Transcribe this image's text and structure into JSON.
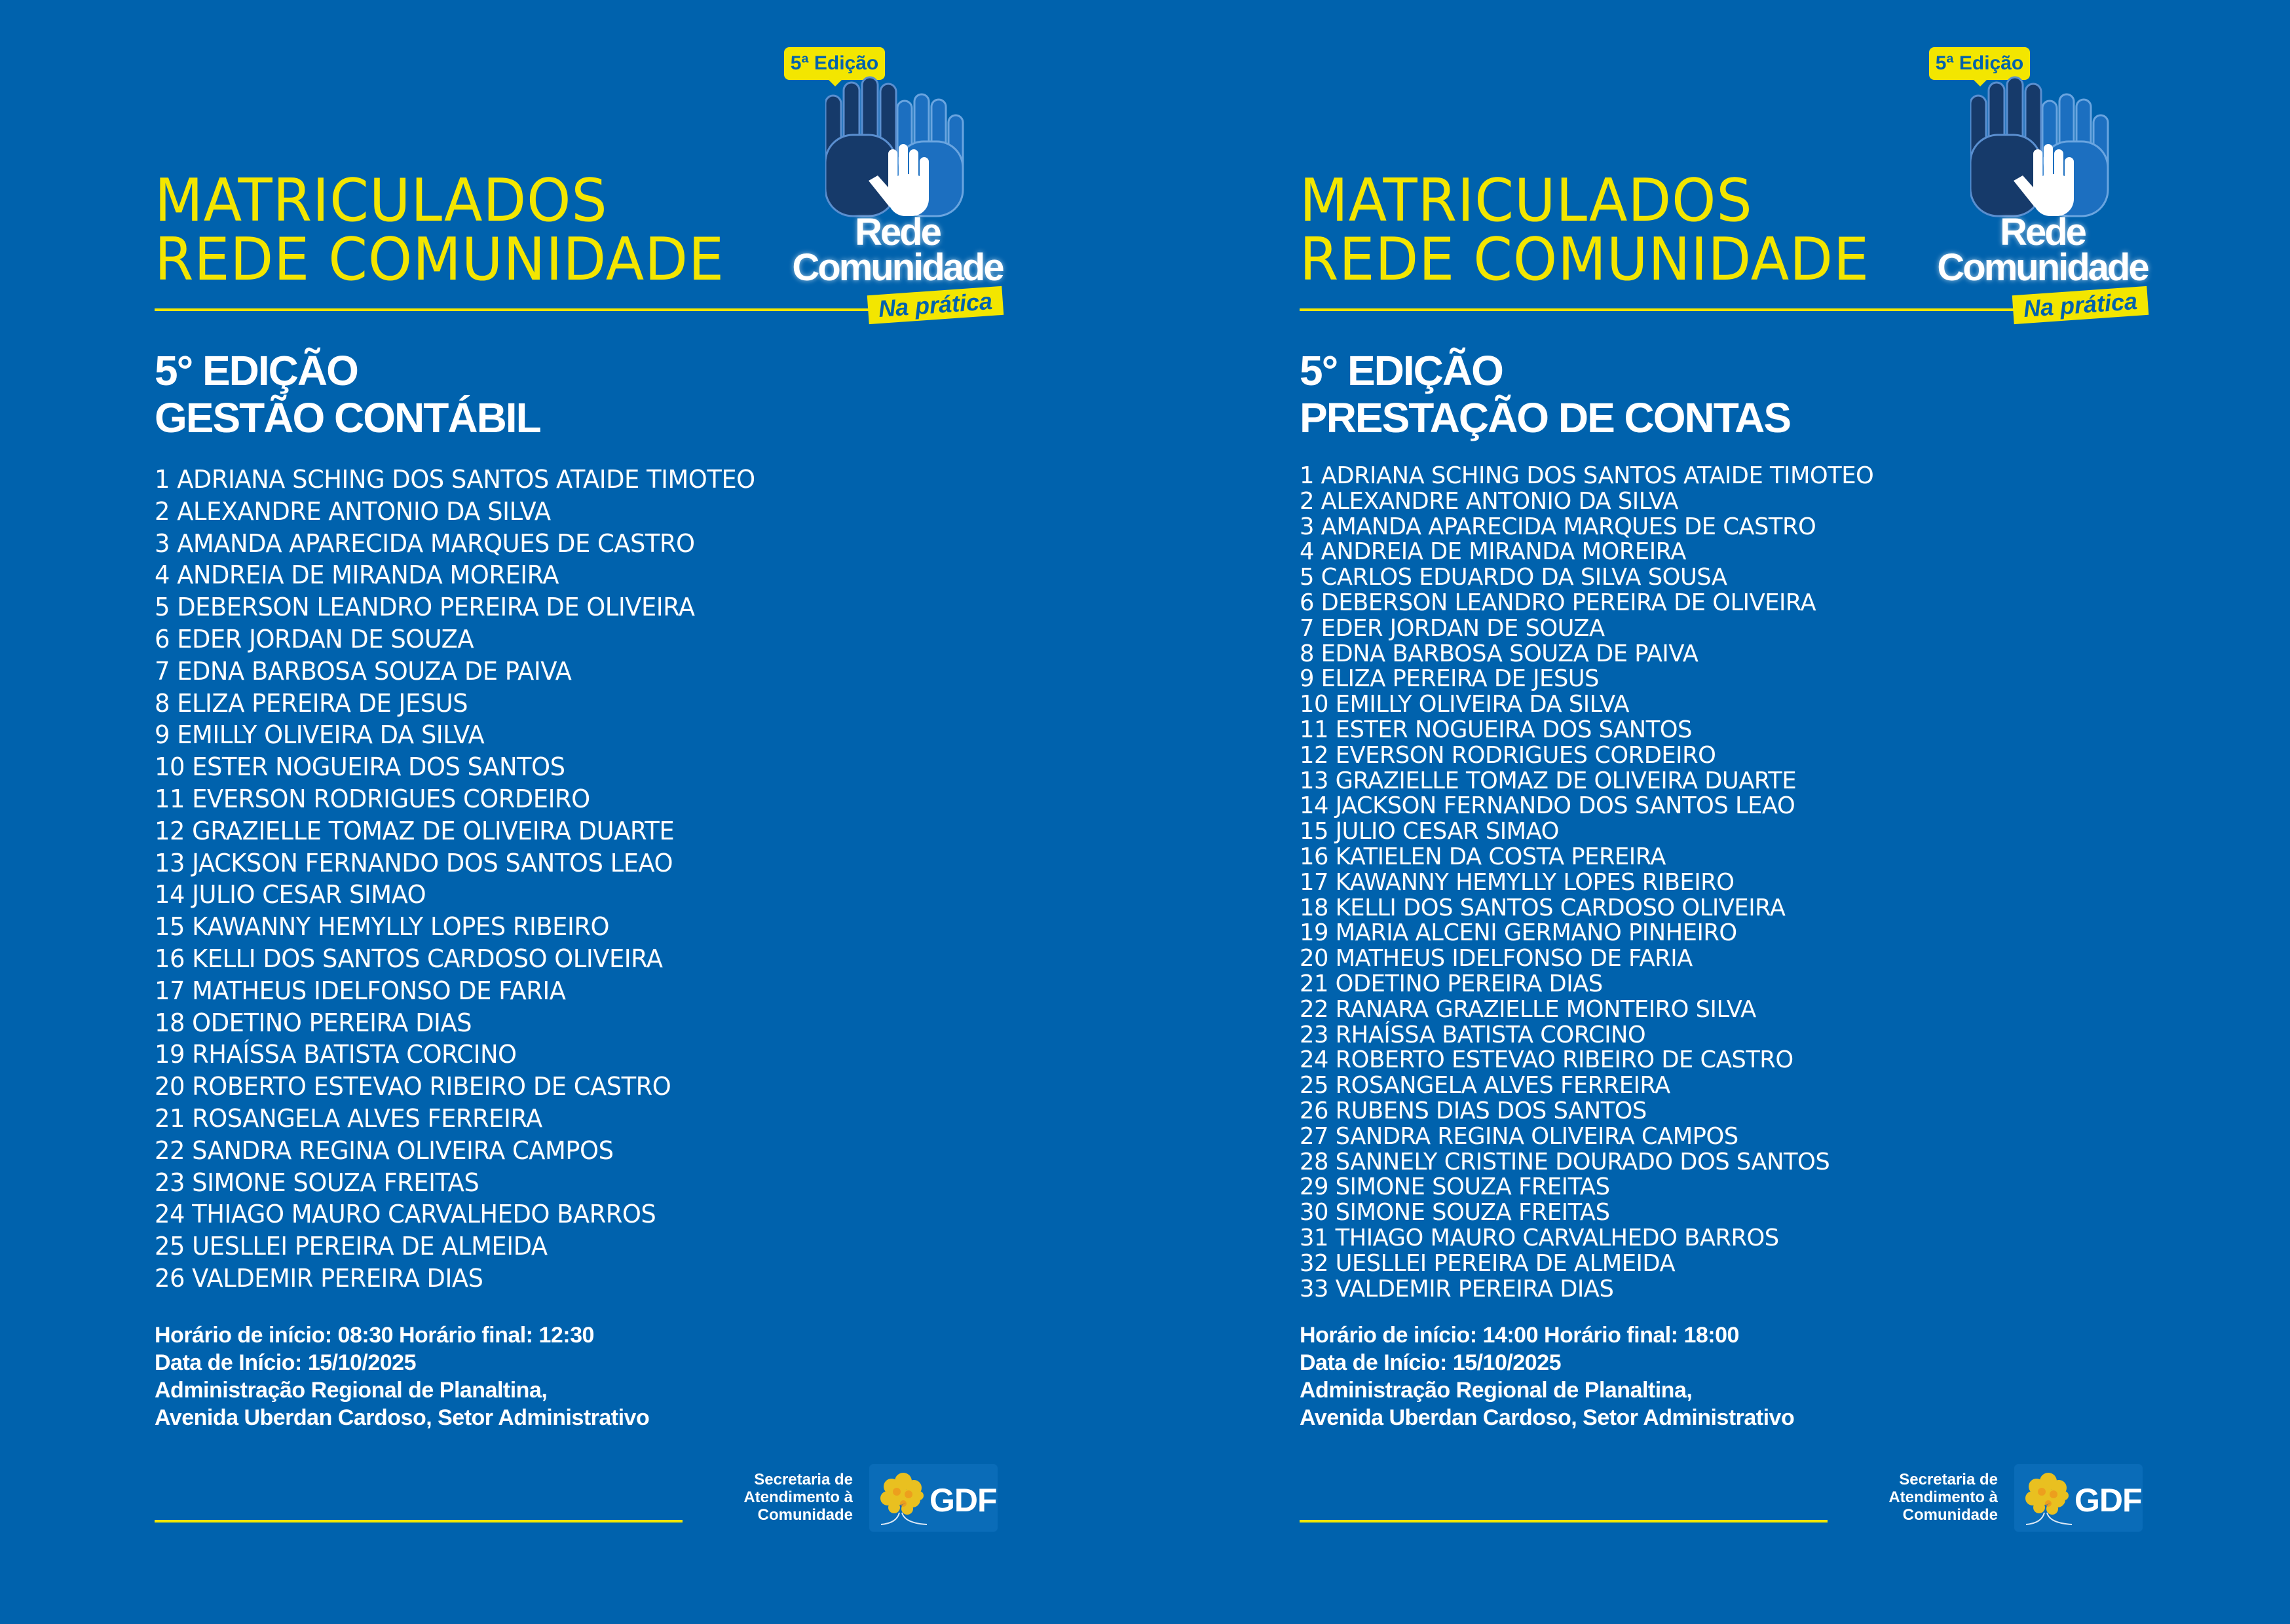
{
  "colors": {
    "background": "#0062ad",
    "accent_yellow": "#f3e600",
    "text": "#ffffff"
  },
  "logo": {
    "badge": "5ª Edição",
    "name_line1": "Rede",
    "name_line2": "Comunidade",
    "tagline": "Na prática",
    "icon": "hands-icon"
  },
  "footer_logo": {
    "secretaria_line1": "Secretaria de",
    "secretaria_line2": "Atendimento à",
    "secretaria_line3": "Comunidade",
    "gdf": "GDF",
    "icon": "ipe-tree-icon"
  },
  "panels": [
    {
      "title_line1": "MATRICULADOS",
      "title_line2": "REDE COMUNIDADE",
      "edition": "5° EDIÇÃO",
      "course": "GESTÃO CONTÁBIL",
      "students": [
        "1 ADRIANA SCHING DOS SANTOS ATAIDE TIMOTEO",
        "2 ALEXANDRE ANTONIO DA SILVA",
        "3 AMANDA APARECIDA MARQUES DE CASTRO",
        "4 ANDREIA DE MIRANDA MOREIRA",
        "5 DEBERSON LEANDRO PEREIRA DE OLIVEIRA",
        "6 EDER JORDAN DE SOUZA",
        "7 EDNA BARBOSA SOUZA DE PAIVA",
        "8 ELIZA PEREIRA DE JESUS",
        "9 EMILLY OLIVEIRA DA SILVA",
        "10 ESTER NOGUEIRA DOS SANTOS",
        "11 EVERSON RODRIGUES CORDEIRO",
        "12 GRAZIELLE TOMAZ DE OLIVEIRA DUARTE",
        "13 JACKSON FERNANDO DOS SANTOS LEAO",
        "14 JULIO CESAR SIMAO",
        "15 KAWANNY HEMYLLY LOPES RIBEIRO",
        "16 KELLI DOS SANTOS CARDOSO OLIVEIRA",
        "17 MATHEUS IDELFONSO DE FARIA",
        "18 ODETINO PEREIRA DIAS",
        "19 RHAÍSSA BATISTA CORCINO",
        "20 ROBERTO ESTEVAO RIBEIRO DE CASTRO",
        "21 ROSANGELA ALVES FERREIRA",
        "22 SANDRA REGINA OLIVEIRA CAMPOS",
        "23 SIMONE SOUZA FREITAS",
        "24 THIAGO MAURO CARVALHEDO BARROS",
        "25 UESLLEI PEREIRA DE ALMEIDA",
        "26 VALDEMIR PEREIRA DIAS"
      ],
      "info": [
        "Horário de início: 08:30 Horário final: 12:30",
        "Data de Início: 15/10/2025",
        "Administração Regional de Planaltina,",
        "Avenida Uberdan Cardoso, Setor Administrativo"
      ]
    },
    {
      "title_line1": "MATRICULADOS",
      "title_line2": "REDE COMUNIDADE",
      "edition": "5° EDIÇÃO",
      "course": "PRESTAÇÃO DE CONTAS",
      "students": [
        "1 ADRIANA SCHING DOS SANTOS ATAIDE TIMOTEO",
        "2 ALEXANDRE ANTONIO DA SILVA",
        "3 AMANDA APARECIDA MARQUES DE CASTRO",
        "4 ANDREIA DE MIRANDA MOREIRA",
        "5 CARLOS EDUARDO DA SILVA SOUSA",
        "6 DEBERSON LEANDRO PEREIRA DE OLIVEIRA",
        "7 EDER JORDAN DE SOUZA",
        "8 EDNA BARBOSA SOUZA DE PAIVA",
        "9 ELIZA PEREIRA DE JESUS",
        "10 EMILLY OLIVEIRA DA SILVA",
        "11 ESTER NOGUEIRA DOS SANTOS",
        "12 EVERSON RODRIGUES CORDEIRO",
        "13 GRAZIELLE TOMAZ DE OLIVEIRA DUARTE",
        "14 JACKSON FERNANDO DOS SANTOS LEAO",
        "15 JULIO CESAR SIMAO",
        "16 KATIELEN DA COSTA PEREIRA",
        "17 KAWANNY HEMYLLY LOPES RIBEIRO",
        "18 KELLI DOS SANTOS CARDOSO OLIVEIRA",
        "19 MARIA ALCENI GERMANO PINHEIRO",
        "20 MATHEUS IDELFONSO DE FARIA",
        "21 ODETINO PEREIRA DIAS",
        "22 RANARA GRAZIELLE MONTEIRO SILVA",
        "23 RHAÍSSA BATISTA CORCINO",
        "24 ROBERTO ESTEVAO RIBEIRO DE CASTRO",
        "25 ROSANGELA ALVES FERREIRA",
        "26 RUBENS DIAS DOS SANTOS",
        "27 SANDRA REGINA OLIVEIRA CAMPOS",
        "28 SANNELY CRISTINE DOURADO DOS SANTOS",
        "29 SIMONE SOUZA FREITAS",
        "30 SIMONE SOUZA FREITAS",
        "31 THIAGO MAURO CARVALHEDO BARROS",
        "32 UESLLEI PEREIRA DE ALMEIDA",
        "33 VALDEMIR PEREIRA DIAS"
      ],
      "info": [
        "Horário de início: 14:00 Horário final: 18:00",
        "Data de Início: 15/10/2025",
        "Administração Regional de Planaltina,",
        "Avenida Uberdan Cardoso, Setor Administrativo"
      ]
    }
  ]
}
